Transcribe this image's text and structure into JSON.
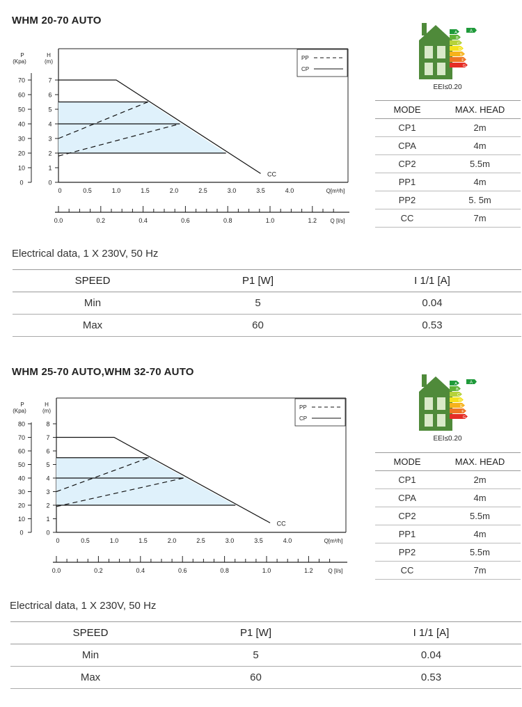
{
  "chart_data": [
    {
      "type": "line",
      "title": "WHM 20-70 AUTO",
      "y_axes": {
        "left_label": [
          "P",
          "(Kpa)"
        ],
        "left_ticks": [
          0,
          10,
          20,
          30,
          40,
          50,
          60,
          70
        ],
        "right_label": [
          "H",
          "(m)"
        ],
        "right_ticks": [
          0,
          1,
          2,
          3,
          4,
          5,
          6,
          7
        ],
        "ylim": [
          0,
          8
        ]
      },
      "x_axes": {
        "q_label": "Q[m³/h]",
        "q_ticks": [
          "0",
          "0.5",
          "1.0",
          "1.5",
          "2.0",
          "2.5",
          "3.0",
          "3.5",
          "4.0"
        ],
        "q_tick_values": [
          0,
          0.5,
          1.0,
          1.5,
          2.0,
          2.5,
          3.0,
          3.5,
          4.0
        ],
        "xlim": [
          0,
          5
        ],
        "ls_label": "Q [l/s]",
        "ls_ticks": [
          "0.0",
          "0.2",
          "0.4",
          "0.6",
          "0.8",
          "1.0",
          "1.2"
        ],
        "ls_tick_values": [
          0,
          0.2,
          0.4,
          0.6,
          0.8,
          1.0,
          1.2
        ]
      },
      "legend": [
        {
          "name": "PP",
          "style": "dashed"
        },
        {
          "name": "CP",
          "style": "solid"
        }
      ],
      "legend_position": "top-right",
      "curve_label": "CC",
      "series": [
        {
          "name": "CC",
          "style": "solid",
          "x": [
            0,
            1.0,
            3.5
          ],
          "y": [
            7,
            7,
            0.6
          ]
        },
        {
          "name": "CP",
          "style": "solid",
          "x": [
            0,
            1.55
          ],
          "y": [
            5.5,
            5.5
          ]
        },
        {
          "name": "CP",
          "style": "solid",
          "x": [
            0,
            2.1
          ],
          "y": [
            4,
            4
          ]
        },
        {
          "name": "CP",
          "style": "solid",
          "x": [
            0,
            2.9
          ],
          "y": [
            2,
            2
          ]
        },
        {
          "name": "PP",
          "style": "dashed",
          "x": [
            0,
            1.55
          ],
          "y": [
            3.0,
            5.5
          ]
        },
        {
          "name": "PP",
          "style": "dashed",
          "x": [
            0,
            2.1
          ],
          "y": [
            1.8,
            4.0
          ]
        }
      ],
      "shaded_region": {
        "x": [
          0,
          1.55,
          2.9,
          0
        ],
        "y": [
          5.5,
          5.5,
          2,
          2
        ],
        "color": "#dff1fb"
      }
    },
    {
      "type": "line",
      "title": "WHM 25-70 AUTO,WHM 32-70 AUTO",
      "y_axes": {
        "left_label": [
          "P",
          "(Kpa)"
        ],
        "left_ticks": [
          0,
          10,
          20,
          30,
          40,
          50,
          60,
          70,
          80
        ],
        "right_label": [
          "H",
          "(m)"
        ],
        "right_ticks": [
          0,
          1,
          2,
          3,
          4,
          5,
          6,
          7,
          8
        ],
        "ylim": [
          0,
          9
        ]
      },
      "x_axes": {
        "q_label": "Q[m³/h]",
        "q_ticks": [
          "0",
          "0.5",
          "1.0",
          "1.5",
          "2.0",
          "2.5",
          "3.0",
          "3.5",
          "4.0"
        ],
        "q_tick_values": [
          0,
          0.5,
          1.0,
          1.5,
          2.0,
          2.5,
          3.0,
          3.5,
          4.0
        ],
        "xlim": [
          0,
          5
        ],
        "ls_label": "Q [l/s]",
        "ls_ticks": [
          "0.0",
          "0.2",
          "0.4",
          "0.6",
          "0.8",
          "1.0",
          "1.2"
        ],
        "ls_tick_values": [
          0,
          0.2,
          0.4,
          0.6,
          0.8,
          1.0,
          1.2
        ]
      },
      "legend": [
        {
          "name": "PP",
          "style": "dashed"
        },
        {
          "name": "CP",
          "style": "solid"
        }
      ],
      "legend_position": "top-right",
      "curve_label": "CC",
      "series": [
        {
          "name": "CC",
          "style": "solid",
          "x": [
            0,
            1.0,
            3.7
          ],
          "y": [
            7,
            7,
            0.7
          ]
        },
        {
          "name": "CP",
          "style": "solid",
          "x": [
            0,
            1.6
          ],
          "y": [
            5.5,
            5.5
          ]
        },
        {
          "name": "CP",
          "style": "solid",
          "x": [
            0,
            2.2
          ],
          "y": [
            4,
            4
          ]
        },
        {
          "name": "CP",
          "style": "solid",
          "x": [
            0,
            3.1
          ],
          "y": [
            2,
            2
          ]
        },
        {
          "name": "PP",
          "style": "dashed",
          "x": [
            0,
            1.6
          ],
          "y": [
            3.0,
            5.5
          ]
        },
        {
          "name": "PP",
          "style": "dashed",
          "x": [
            0,
            2.2
          ],
          "y": [
            1.9,
            4.0
          ]
        }
      ],
      "shaded_region": {
        "x": [
          0,
          1.6,
          3.1,
          0
        ],
        "y": [
          5.5,
          5.5,
          2,
          2
        ],
        "color": "#dff1fb"
      }
    }
  ],
  "sections": [
    {
      "title": "WHM 20-70 AUTO",
      "eei_label": "EEI≤0.20",
      "mode_table": {
        "headers": [
          "MODE",
          "MAX. HEAD"
        ],
        "rows": [
          [
            "CP1",
            "2m"
          ],
          [
            "CPA",
            "4m"
          ],
          [
            "CP2",
            "5.5m"
          ],
          [
            "PP1",
            "4m"
          ],
          [
            "PP2",
            "5. 5m"
          ],
          [
            "CC",
            "7m"
          ]
        ]
      },
      "electrical": {
        "title": "Electrical data, 1 X 230V, 50 Hz",
        "headers": [
          "SPEED",
          "P1 [W]",
          "I 1/1 [A]"
        ],
        "rows": [
          [
            "Min",
            "5",
            "0.04"
          ],
          [
            "Max",
            "60",
            "0.53"
          ]
        ]
      }
    },
    {
      "title": "WHM 25-70 AUTO,WHM 32-70 AUTO",
      "eei_label": "EEI≤0.20",
      "mode_table": {
        "headers": [
          "MODE",
          "MAX. HEAD"
        ],
        "rows": [
          [
            "CP1",
            "2m"
          ],
          [
            "CPA",
            "4m"
          ],
          [
            "CP2",
            "5.5m"
          ],
          [
            "PP1",
            "4m"
          ],
          [
            "PP2",
            "5.5m"
          ],
          [
            "CC",
            "7m"
          ]
        ]
      },
      "electrical": {
        "title": "Electrical data, 1 X 230V, 50 Hz",
        "headers": [
          "SPEED",
          "P1 [W]",
          "I 1/1 [A]"
        ],
        "rows": [
          [
            "Min",
            "5",
            "0.04"
          ],
          [
            "Max",
            "60",
            "0.53"
          ]
        ]
      }
    }
  ],
  "energy_label": {
    "classes": [
      "A",
      "B",
      "C",
      "D",
      "E",
      "F",
      "G"
    ],
    "class_colors": [
      "#1f9a3a",
      "#5fb336",
      "#b6d23a",
      "#f4e21c",
      "#f6b21b",
      "#ee7523",
      "#e52d25"
    ],
    "rating": "A",
    "house_color": "#4f8a3a"
  }
}
